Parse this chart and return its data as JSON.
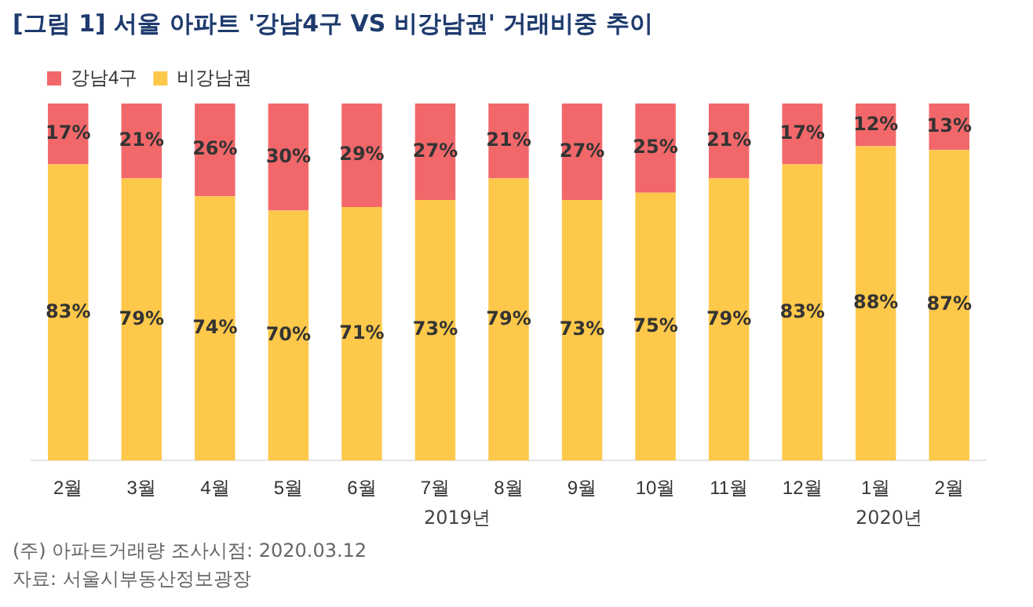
{
  "chart_data": {
    "type": "bar",
    "title": "[그림 1] 서울 아파트 '강남4구 VS 비강남권' 거래비중 추이",
    "categories": [
      "2월",
      "3월",
      "4월",
      "5월",
      "6월",
      "7월",
      "8월",
      "9월",
      "10월",
      "11월",
      "12월",
      "1월",
      "2월"
    ],
    "stacked": true,
    "ylim": [
      0,
      100
    ],
    "tick_labels": "x",
    "grid": false,
    "legend": "top left",
    "series": [
      {
        "name": "비강남권",
        "color": "#fec84a",
        "values": [
          83,
          79,
          74,
          70,
          71,
          73,
          79,
          73,
          75,
          79,
          83,
          88,
          87
        ],
        "value_labels": [
          "83%",
          "79%",
          "74%",
          "70%",
          "71%",
          "73%",
          "79%",
          "73%",
          "75%",
          "79%",
          "83%",
          "88%",
          "87%"
        ]
      },
      {
        "name": "강남4구",
        "color": "#f2686a",
        "values": [
          17,
          21,
          26,
          30,
          29,
          27,
          21,
          27,
          25,
          21,
          17,
          12,
          13
        ],
        "value_labels": [
          "17%",
          "21%",
          "26%",
          "30%",
          "29%",
          "27%",
          "21%",
          "27%",
          "25%",
          "21%",
          "17%",
          "12%",
          "13%"
        ]
      }
    ],
    "annotations": [
      "2019년",
      "2020년",
      "(주) 아파트거래량 조사시점: 2020.03.12",
      "자료: 서울시부동산정보광장"
    ]
  }
}
